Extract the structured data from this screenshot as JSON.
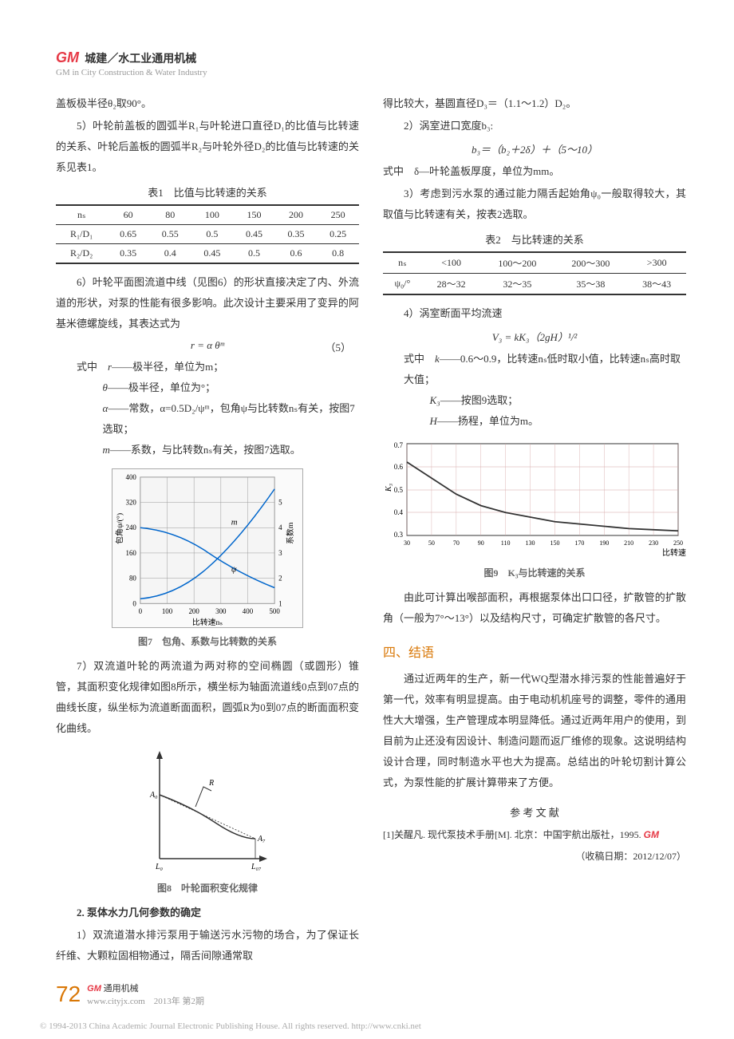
{
  "header": {
    "logo": "GM",
    "title": "城建／水工业通用机械",
    "subtitle": "GM in City Construction & Water Industry"
  },
  "left": {
    "p1": "盖板极半径θ₂取90°。",
    "p2": "5）叶轮前盖板的圆弧半R₁与叶轮进口直径D₁的比值与比转速的关系、叶轮后盖板的圆弧半R₂与叶轮外径D₂的比值与比转速的关系见表1。",
    "table1_caption": "表1　比值与比转速的关系",
    "table1": {
      "headers": [
        "nₛ",
        "60",
        "80",
        "100",
        "150",
        "200",
        "250"
      ],
      "rows": [
        [
          "R₁/D₁",
          "0.65",
          "0.55",
          "0.5",
          "0.45",
          "0.35",
          "0.25"
        ],
        [
          "R₂/D₂",
          "0.35",
          "0.4",
          "0.45",
          "0.5",
          "0.6",
          "0.8"
        ]
      ]
    },
    "p3": "6）叶轮平面图流道中线（见图6）的形状直接决定了内、外流道的形状，对泵的性能有很多影响。此次设计主要采用了变异的阿基米德螺旋线，其表达式为",
    "formula5": "r = α θᵐ",
    "formula5_num": "（5）",
    "def_intro": "式中",
    "defs": [
      {
        "sym": "r",
        "text": "——极半径，单位为m；"
      },
      {
        "sym": "θ",
        "text": "——极半径，单位为°；"
      },
      {
        "sym": "α",
        "text": "——常数，α=0.5D₂/ψᵐ，包角ψ与比转数nₛ有关，按图7选取；"
      },
      {
        "sym": "m",
        "text": "——系数，与比转数nₛ有关，按图7选取。"
      }
    ],
    "fig7": {
      "caption": "图7　包角、系数与比转数的关系",
      "ylabel_left": "包角ψ/(°)",
      "ylabel_right": "系数m",
      "xlabel": "比转速nₛ",
      "x_ticks": [
        "0",
        "100",
        "200",
        "300",
        "400",
        "500"
      ],
      "yl_ticks": [
        "0",
        "80",
        "160",
        "240",
        "320",
        "400"
      ],
      "yr_ticks": [
        "1",
        "2",
        "3",
        "4",
        "5"
      ],
      "curve_m_label": "m",
      "curve_psi_label": "ψ",
      "curve_m": [
        {
          "x": 0,
          "y": 1.2
        },
        {
          "x": 100,
          "y": 1.4
        },
        {
          "x": 200,
          "y": 1.8
        },
        {
          "x": 300,
          "y": 2.6
        },
        {
          "x": 400,
          "y": 3.6
        },
        {
          "x": 500,
          "y": 4.6
        }
      ],
      "curve_psi": [
        {
          "x": 0,
          "y": 240
        },
        {
          "x": 100,
          "y": 230
        },
        {
          "x": 200,
          "y": 180
        },
        {
          "x": 300,
          "y": 130
        },
        {
          "x": 400,
          "y": 90
        },
        {
          "x": 500,
          "y": 60
        }
      ],
      "colors": {
        "axis": "#333",
        "grid": "#ccc",
        "curve": "#0066cc",
        "bg": "#f5f5f5"
      }
    },
    "p4": "7）双流道叶轮的两流道为两对称的空间椭圆（或圆形）锥管，其面积变化规律如图8所示，横坐标为轴面流道线0点到07点的曲线长度，纵坐标为流道断面面积，圆弧R为0到07点的断面面积变化曲线。",
    "fig8": {
      "caption": "图8　叶轮面积变化规律",
      "labels": {
        "A0": "A₀",
        "A7": "A₇",
        "L0": "L₀",
        "L07": "L₀₇",
        "R": "R"
      },
      "colors": {
        "line": "#333",
        "fill": "#e8e8e8"
      }
    },
    "h2": "2. 泵体水力几何参数的确定",
    "p5": "1）双流道潜水排污泵用于输送污水污物的场合，为了保证长纤维、大颗粒固相物通过，隔舌间隙通常取"
  },
  "right": {
    "p1": "得比较大，基圆直径D₃＝（1.1～1.2）D₂。",
    "p2": "2）涡室进口宽度b₃:",
    "formula_b3": "b₃＝（b₂＋2δ）＋（5～10）",
    "p3": "式中　δ—叶轮盖板厚度，单位为mm。",
    "p4": "3）考虑到污水泵的通过能力隔舌起始角ψ₀一般取得较大，其取值与比转速有关，按表2选取。",
    "table2_caption": "表2　与比转速的关系",
    "table2": {
      "headers": [
        "nₛ",
        "<100",
        "100～200",
        "200～300",
        ">300"
      ],
      "rows": [
        [
          "ψ₀/°",
          "28～32",
          "32～35",
          "35～38",
          "38～43"
        ]
      ]
    },
    "p5": "4）涡室断面平均流速",
    "formula_v3": "V₃ = kK₃（2gH）¹/²",
    "def_intro": "式中",
    "defs": [
      {
        "sym": "k",
        "text": "——0.6～0.9，比转速nₛ低时取小值，比转速nₛ高时取大值；"
      },
      {
        "sym": "K₃",
        "text": "——按图9选取；"
      },
      {
        "sym": "H",
        "text": "——扬程，单位为m。"
      }
    ],
    "fig9": {
      "caption": "图9　K₃与比转速的关系",
      "ylabel": "K₃",
      "xlabel": "比转速",
      "x_ticks": [
        "30",
        "50",
        "70",
        "90",
        "110",
        "130",
        "150",
        "170",
        "190",
        "210",
        "230",
        "250"
      ],
      "y_ticks": [
        "0.3",
        "0.4",
        "0.5",
        "0.6",
        "0.7"
      ],
      "curve": [
        {
          "x": 30,
          "y": 0.62
        },
        {
          "x": 50,
          "y": 0.55
        },
        {
          "x": 70,
          "y": 0.48
        },
        {
          "x": 90,
          "y": 0.43
        },
        {
          "x": 110,
          "y": 0.4
        },
        {
          "x": 130,
          "y": 0.38
        },
        {
          "x": 150,
          "y": 0.36
        },
        {
          "x": 170,
          "y": 0.35
        },
        {
          "x": 190,
          "y": 0.34
        },
        {
          "x": 210,
          "y": 0.33
        },
        {
          "x": 230,
          "y": 0.325
        },
        {
          "x": 250,
          "y": 0.32
        }
      ],
      "colors": {
        "axis": "#333",
        "grid": "#d4a5a5",
        "curve": "#333",
        "bg": "#fff"
      }
    },
    "p6": "由此可计算出喉部面积，再根据泵体出口口径，扩散管的扩散角（一般为7°～13°）以及结构尺寸，可确定扩散管的各尺寸。",
    "section4_title": "四、结语",
    "p7": "通过近两年的生产，新一代WQ型潜水排污泵的性能普遍好于第一代，效率有明显提高。由于电动机机座号的调整，零件的通用性大大增强，生产管理成本明显降低。通过近两年用户的使用，到目前为止还没有因设计、制造问题而返厂维修的现象。这说明结构设计合理，同时制造水平也大为提高。总结出的叶轮切割计算公式，为泵性能的扩展计算带来了方便。",
    "ref_title": "参 考 文 献",
    "ref1": "[1]关醒凡. 现代泵技术手册[M]. 北京：中国宇航出版社，1995.",
    "gm_end": "GM",
    "date": "（收稿日期：2012/12/07）"
  },
  "footer": {
    "page": "72",
    "gm": "GM",
    "brand": "通用机械",
    "url": "www.cityjx.com",
    "issue": "2013年 第2期"
  },
  "copyright": "© 1994-2013 China Academic Journal Electronic Publishing House. All rights reserved.    http://www.cnki.net"
}
